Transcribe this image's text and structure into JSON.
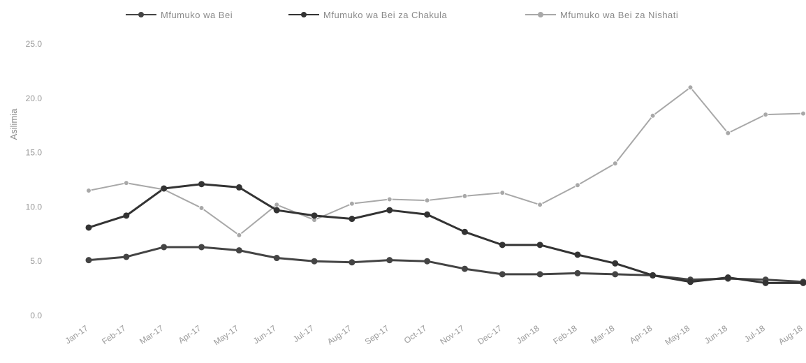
{
  "chart_data": {
    "type": "line",
    "title": "",
    "ylabel": "Asilimia",
    "xlabel": "",
    "ylim": [
      0,
      25
    ],
    "yticks": [
      "0.0",
      "5.0",
      "10.0",
      "15.0",
      "20.0",
      "25.0"
    ],
    "categories": [
      "Jan-17",
      "Feb-17",
      "Mar-17",
      "Apr-17",
      "May-17",
      "Jun-17",
      "Jul-17",
      "Aug-17",
      "Sep-17",
      "Oct-17",
      "Nov-17",
      "Dec-17",
      "Jan-18",
      "Feb-18",
      "Mar-18",
      "Apr-18",
      "May-18",
      "Jun-18",
      "Jul-18",
      "Aug-18"
    ],
    "legend_position": "top",
    "grid": false,
    "series": [
      {
        "name": "Mfumuko wa Bei",
        "color": "#444444",
        "marker": "circle",
        "values": [
          5.1,
          5.4,
          6.3,
          6.3,
          6.0,
          5.3,
          5.0,
          4.9,
          5.1,
          5.0,
          4.3,
          3.8,
          3.8,
          3.9,
          3.8,
          3.7,
          3.3,
          3.4,
          3.3,
          3.1
        ]
      },
      {
        "name": "Mfumuko wa Bei za Chakula",
        "color": "#333333",
        "marker": "circle",
        "values": [
          8.1,
          9.2,
          11.7,
          12.1,
          11.8,
          9.7,
          9.2,
          8.9,
          9.7,
          9.3,
          7.7,
          6.5,
          6.5,
          5.6,
          4.8,
          3.7,
          3.1,
          3.5,
          3.0,
          3.0
        ]
      },
      {
        "name": "Mfumuko wa Bei za Nishati",
        "color": "#a8a8a8",
        "marker": "circle",
        "values": [
          11.5,
          12.2,
          11.6,
          9.9,
          7.4,
          10.2,
          8.8,
          10.3,
          10.7,
          10.6,
          11.0,
          11.3,
          10.2,
          12.0,
          14.0,
          18.4,
          21.0,
          16.8,
          18.5,
          18.6
        ]
      }
    ]
  }
}
